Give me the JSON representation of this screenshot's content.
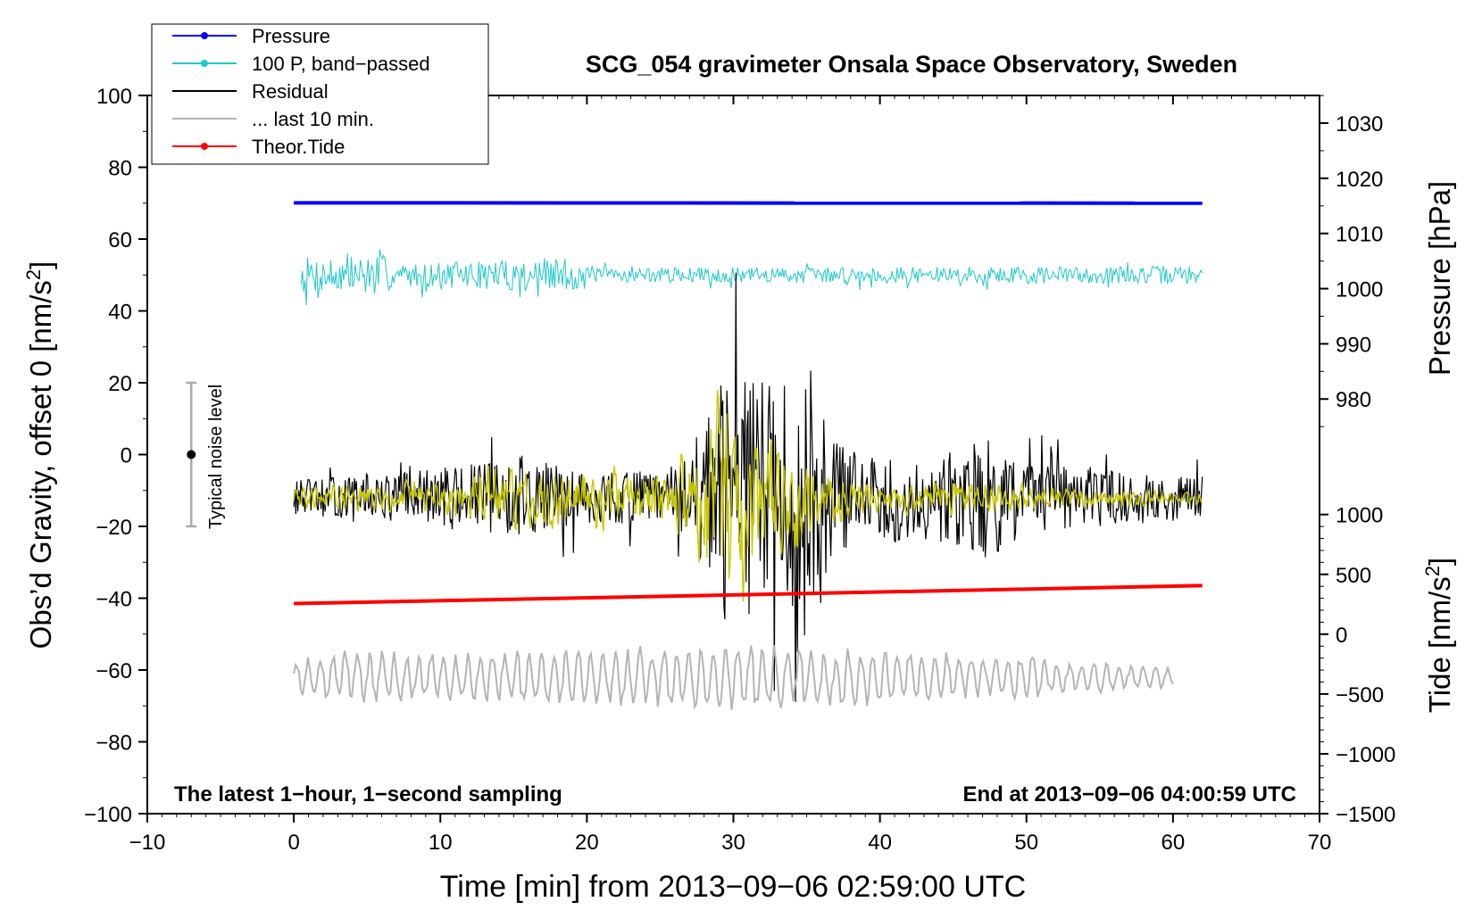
{
  "chart_data": {
    "type": "line",
    "title": "SCG_054 gravimeter Onsala Space Observatory, Sweden",
    "xlabel": "Time [min] from 2013−09−06 02:59:00 UTC",
    "ylabel_left_main": "Obs’d Gravity, offset 0 [nm/s",
    "ylabel_left_sup": "2",
    "ylabel_left_close": "]",
    "ylabel_right_pressure": "Pressure [hPa]",
    "ylabel_right_tide_main": "Tide [nm/s",
    "ylabel_right_tide_sup": "2",
    "ylabel_right_tide_close": "]",
    "note_left": "The latest 1−hour, 1−second sampling",
    "note_right": "End at 2013−09−06 04:00:59 UTC",
    "noise_label": "Typical noise level",
    "noise_bar": {
      "center": 0,
      "low": -20,
      "high": 20,
      "x": -7
    },
    "xlim": [
      -10,
      70
    ],
    "ylim": [
      -100,
      100
    ],
    "x_ticks": [
      -10,
      0,
      10,
      20,
      30,
      40,
      50,
      60,
      70
    ],
    "x_tick_labels": [
      "−10",
      "0",
      "10",
      "20",
      "30",
      "40",
      "50",
      "60",
      "70"
    ],
    "y_ticks": [
      -100,
      -80,
      -60,
      -40,
      -20,
      0,
      20,
      40,
      60,
      80,
      100
    ],
    "y_tick_labels": [
      "−100",
      "−80",
      "−60",
      "−40",
      "−20",
      "0",
      "20",
      "40",
      "60",
      "80",
      "100"
    ],
    "pressure_ticks": [
      980,
      990,
      1000,
      1010,
      1020,
      1030
    ],
    "pressure_tick_labels": [
      "980",
      "990",
      "1000",
      "1010",
      "1020",
      "1030"
    ],
    "pressure_axis_map": {
      "value_a": 1000,
      "y_a": 46.2,
      "value_b": 1030,
      "y_b": 92.3
    },
    "tide_ticks": [
      -1500,
      -1000,
      -500,
      0,
      500,
      1000
    ],
    "tide_tick_labels": [
      "−1500",
      "−1000",
      "−500",
      "0",
      "500",
      "1000"
    ],
    "tide_axis_map": {
      "value_a": -1500,
      "y_a": -100,
      "value_b": 1000,
      "y_b": -16.7
    },
    "legend_placement": "top-left, outside above axes",
    "legend": [
      {
        "label": "Pressure",
        "color": "#0000ff",
        "marker": true
      },
      {
        "label": "100 P, band−passed",
        "color": "#20c8c8",
        "marker": true
      },
      {
        "label": "Residual",
        "color": "#000000",
        "marker": false
      },
      {
        "label": "... last 10 min.",
        "color": "#b4b4b4",
        "marker": false
      },
      {
        "label": "Theor.Tide",
        "color": "#ff0000",
        "marker": true
      }
    ],
    "series": [
      {
        "name": "Pressure",
        "color": "#0000ff",
        "x": [
          0,
          62
        ],
        "y": [
          70.1,
          70.0
        ],
        "style": "thick"
      },
      {
        "name": "100 P, band−passed",
        "color": "#20c8c8",
        "x_range": [
          0.5,
          62
        ],
        "mean": 50,
        "amplitude_env": [
          [
            0,
            5
          ],
          [
            6,
            6
          ],
          [
            7,
            3
          ],
          [
            19,
            5
          ],
          [
            20,
            2
          ],
          [
            62,
            2.5
          ]
        ],
        "noise_seed": 7
      },
      {
        "name": "Residual",
        "color": "#000000",
        "x_range": [
          0,
          62
        ],
        "mean": -12,
        "amplitude_env": [
          [
            0,
            5
          ],
          [
            5,
            6
          ],
          [
            13,
            10
          ],
          [
            16,
            12
          ],
          [
            20,
            7
          ],
          [
            26,
            8
          ],
          [
            28,
            20
          ],
          [
            29.5,
            35
          ],
          [
            31,
            38
          ],
          [
            33,
            30
          ],
          [
            35,
            40
          ],
          [
            36,
            25
          ],
          [
            38,
            12
          ],
          [
            45,
            13
          ],
          [
            47,
            18
          ],
          [
            50,
            10
          ],
          [
            55,
            8
          ],
          [
            62,
            6
          ]
        ],
        "noise_seed": 13
      },
      {
        "name": "Residual (smoothed)",
        "color": "#c8c800",
        "x_range": [
          0,
          62
        ],
        "mean": -12,
        "amplitude_env": [
          [
            0,
            1.5
          ],
          [
            12,
            3
          ],
          [
            14,
            5
          ],
          [
            20,
            4
          ],
          [
            26,
            5
          ],
          [
            28,
            12
          ],
          [
            30,
            17
          ],
          [
            32,
            10
          ],
          [
            34,
            9
          ],
          [
            36,
            4
          ],
          [
            40,
            2
          ],
          [
            45,
            3
          ],
          [
            52,
            1.5
          ],
          [
            62,
            1
          ]
        ],
        "noise_seed": 29
      },
      {
        "name": "... last 10 min.",
        "color": "#b4b4b4",
        "x_range": [
          0,
          60
        ],
        "mean": -62,
        "amplitude_env": [
          [
            0,
            5
          ],
          [
            4,
            8
          ],
          [
            8,
            7
          ],
          [
            20,
            8
          ],
          [
            25,
            9
          ],
          [
            27,
            10
          ],
          [
            40,
            8
          ],
          [
            50,
            6
          ],
          [
            60,
            3
          ]
        ],
        "noise_seed": 41
      },
      {
        "name": "Theor.Tide",
        "color": "#ff0000",
        "x": [
          0,
          62
        ],
        "y": [
          -41.5,
          -36.5
        ],
        "style": "thick"
      }
    ]
  }
}
